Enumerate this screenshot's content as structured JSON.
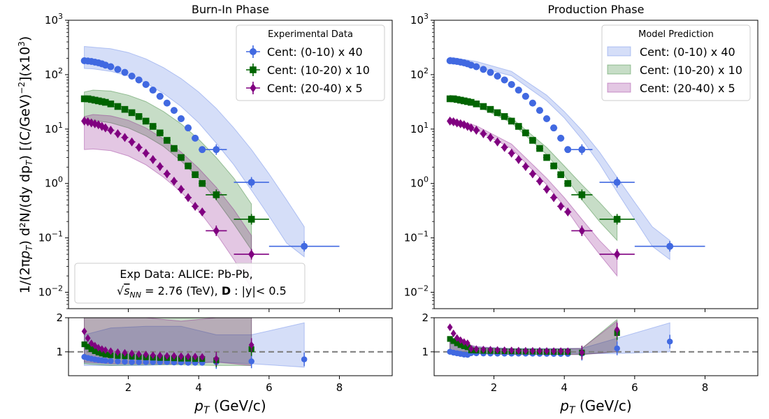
{
  "chart_data": {
    "type": "scatter",
    "ylabel": "1/(2πp_T) d²N/(dy dp_T) [(C/GeV)^-2](x10^3)",
    "xlabel": "p_T (GeV/c)",
    "yscale": "log",
    "xlim": [
      0.3,
      9.5
    ],
    "ylim": [
      0.005,
      1000
    ],
    "ratio_ylim": [
      0.3,
      2
    ],
    "xticks": [
      2,
      4,
      6,
      8
    ],
    "colors": {
      "c010": "#4169e1",
      "c1020": "#006400",
      "c2040": "#800080",
      "ref_line": "#808080"
    },
    "x": [
      0.75,
      0.85,
      0.95,
      1.05,
      1.15,
      1.25,
      1.35,
      1.5,
      1.7,
      1.9,
      2.1,
      2.3,
      2.5,
      2.7,
      2.9,
      3.1,
      3.3,
      3.5,
      3.7,
      3.9,
      4.1,
      4.5,
      5.5,
      7.0
    ],
    "x_err": [
      0.05,
      0.05,
      0.05,
      0.05,
      0.05,
      0.05,
      0.05,
      0.1,
      0.1,
      0.1,
      0.1,
      0.1,
      0.1,
      0.1,
      0.1,
      0.1,
      0.1,
      0.1,
      0.1,
      0.1,
      0.1,
      0.3,
      0.5,
      1.0
    ],
    "series": [
      {
        "name": "Cent: (0-10) x 40",
        "color_key": "c010",
        "marker": "circle",
        "values": [
          180,
          178,
          175,
          170,
          165,
          158,
          150,
          140,
          125,
          110,
          94,
          80,
          66,
          52,
          40,
          30,
          22,
          15.5,
          10.5,
          6.8,
          4.2,
          4.2,
          1.05,
          0.07
        ],
        "ratio": [
          0.85,
          0.82,
          0.8,
          0.78,
          0.76,
          0.75,
          0.74,
          0.73,
          0.72,
          0.71,
          0.7,
          0.7,
          0.7,
          0.7,
          0.7,
          0.7,
          0.69,
          0.69,
          0.68,
          0.68,
          0.68,
          0.7,
          0.72,
          0.78
        ]
      },
      {
        "name": "Cent: (10-20) x 10",
        "color_key": "c1020",
        "marker": "square",
        "values": [
          36,
          36,
          35,
          34,
          33,
          32,
          31,
          29,
          26,
          23,
          20,
          17,
          14,
          11.2,
          8.5,
          6.2,
          4.4,
          3.0,
          2.1,
          1.45,
          1.0,
          0.62,
          0.22
        ],
        "ratio": [
          1.22,
          1.15,
          1.08,
          1.02,
          0.98,
          0.95,
          0.92,
          0.9,
          0.88,
          0.87,
          0.86,
          0.85,
          0.84,
          0.83,
          0.82,
          0.82,
          0.81,
          0.8,
          0.8,
          0.79,
          0.79,
          0.75,
          1.08
        ]
      },
      {
        "name": "Cent: (20-40) x 5",
        "color_key": "c2040",
        "marker": "diamond",
        "values": [
          14,
          13.6,
          13,
          12.5,
          12,
          11.2,
          10.5,
          9.5,
          8.2,
          7.0,
          5.8,
          4.6,
          3.6,
          2.75,
          2.05,
          1.5,
          1.1,
          0.78,
          0.55,
          0.38,
          0.3,
          0.135,
          0.05
        ],
        "ratio": [
          1.6,
          1.4,
          1.25,
          1.18,
          1.12,
          1.08,
          1.05,
          1.02,
          0.99,
          0.97,
          0.95,
          0.93,
          0.92,
          0.9,
          0.89,
          0.88,
          0.88,
          0.87,
          0.86,
          0.86,
          0.85,
          0.8,
          1.2
        ]
      }
    ],
    "panels": [
      {
        "title": "Burn-In Phase",
        "legend_title": "Experimental Data",
        "legend_kind": "markers",
        "legend_position": "top-right",
        "annotation": [
          "Exp Data: ALICE: Pb-Pb,",
          "√s_NN = 2.76 (TeV), D : |y|< 0.5"
        ],
        "ratio_scale": [
          1,
          1,
          1
        ],
        "bands": [
          {
            "name": "Cent: (0-10) x 40",
            "color_key": "c010",
            "x": [
              0.75,
              1.0,
              1.5,
              2.0,
              2.5,
              3.0,
              3.5,
              4.0,
              4.5,
              5.0,
              5.5,
              6.0,
              6.5,
              7.0
            ],
            "lo": [
              130,
              128,
              115,
              95,
              70,
              45,
              26,
              13,
              5.5,
              2.2,
              0.75,
              0.25,
              0.08,
              0.045
            ],
            "hi": [
              330,
              320,
              300,
              255,
              195,
              135,
              85,
              48,
              24,
              10.5,
              4.2,
              1.5,
              0.5,
              0.16
            ]
          },
          {
            "name": "Cent: (10-20) x 10",
            "color_key": "c1020",
            "x": [
              0.75,
              1.0,
              1.5,
              2.0,
              2.5,
              3.0,
              3.5,
              4.0,
              4.5,
              5.0,
              5.5
            ],
            "lo": [
              15,
              14.5,
              13,
              10.5,
              7.5,
              4.8,
              2.6,
              1.25,
              0.5,
              0.18,
              0.06
            ],
            "hi": [
              48,
              52,
              50,
              42,
              32,
              21,
              12.5,
              6.5,
              3.0,
              1.25,
              0.42
            ]
          },
          {
            "name": "Cent: (20-40) x 5",
            "color_key": "c2040",
            "x": [
              0.75,
              1.0,
              1.5,
              2.0,
              2.5,
              3.0,
              3.5,
              4.0,
              4.5,
              5.0,
              5.5
            ],
            "lo": [
              4.2,
              4.3,
              4.0,
              3.2,
              2.2,
              1.3,
              0.7,
              0.32,
              0.12,
              0.04,
              0.012
            ],
            "hi": [
              17,
              18.5,
              17.5,
              14.5,
              10.5,
              6.6,
              3.8,
              1.9,
              0.85,
              0.33,
              0.11
            ]
          }
        ],
        "ratio_bands": [
          {
            "color_key": "c010",
            "x": [
              0.75,
              1.5,
              2.5,
              3.5,
              4.5,
              5.5,
              7.0
            ],
            "lo": [
              0.6,
              0.6,
              0.6,
              0.65,
              0.7,
              0.65,
              0.55
            ],
            "hi": [
              1.5,
              1.7,
              1.75,
              1.75,
              1.5,
              1.5,
              1.85
            ]
          },
          {
            "color_key": "c1020",
            "x": [
              0.75,
              1.5,
              2.5,
              3.5,
              4.5,
              5.5
            ],
            "lo": [
              0.65,
              0.6,
              0.62,
              0.62,
              0.6,
              0.6
            ],
            "hi": [
              2.0,
              2.0,
              2.0,
              2.0,
              2.0,
              2.0
            ]
          },
          {
            "color_key": "c2040",
            "x": [
              0.75,
              1.5,
              2.5,
              3.5,
              4.5,
              5.5
            ],
            "lo": [
              0.7,
              0.65,
              0.65,
              0.65,
              0.7,
              0.6
            ],
            "hi": [
              2.0,
              2.0,
              2.0,
              1.9,
              2.0,
              2.0
            ]
          }
        ]
      },
      {
        "title": "Production Phase",
        "legend_title": "Model Prediction",
        "legend_kind": "bands",
        "legend_position": "top-right",
        "annotation": [],
        "ratio_scale": [
          1.45,
          1.35,
          1.2
        ],
        "bands": [
          {
            "name": "Cent: (0-10) x 40",
            "color_key": "c010",
            "x": [
              0.75,
              1.5,
              2.5,
              3.5,
              4.0,
              4.5,
              5.0,
              5.5,
              6.0,
              6.5,
              7.0
            ],
            "lo": [
              160,
              140,
              95,
              33,
              16,
              6.5,
              2.3,
              0.7,
              0.22,
              0.07,
              0.04
            ],
            "hi": [
              210,
              175,
              115,
              42,
              21,
              9.5,
              3.8,
              1.3,
              0.45,
              0.16,
              0.09
            ]
          },
          {
            "name": "Cent: (10-20) x 10",
            "color_key": "c1020",
            "x": [
              0.75,
              1.5,
              2.5,
              3.5,
              4.0,
              4.5,
              5.0,
              5.5
            ],
            "lo": [
              33,
              27,
              13,
              3.4,
              1.4,
              0.5,
              0.2,
              0.09
            ],
            "hi": [
              42,
              32,
              16,
              4.6,
              2.1,
              0.95,
              0.45,
              0.2
            ]
          },
          {
            "name": "Cent: (20-40) x 5",
            "color_key": "c2040",
            "x": [
              0.75,
              1.5,
              2.5,
              3.5,
              4.0,
              4.5,
              5.0,
              5.5
            ],
            "lo": [
              12.5,
              9.5,
              4.4,
              0.95,
              0.38,
              0.13,
              0.05,
              0.02
            ],
            "hi": [
              16,
              11.5,
              5.3,
              1.25,
              0.55,
              0.22,
              0.09,
              0.042
            ]
          }
        ],
        "ratio_bands": [
          {
            "color_key": "c010",
            "x": [
              0.75,
              1.5,
              2.5,
              3.5,
              4.5,
              5.5,
              7.0
            ],
            "lo": [
              1.05,
              0.95,
              0.95,
              0.95,
              0.95,
              0.95,
              1.0
            ],
            "hi": [
              1.3,
              1.15,
              1.1,
              1.1,
              1.1,
              1.4,
              1.85
            ]
          },
          {
            "color_key": "c1020",
            "x": [
              0.75,
              1.5,
              2.5,
              3.5,
              4.5,
              5.5
            ],
            "lo": [
              1.05,
              0.95,
              0.92,
              0.92,
              0.92,
              1.0
            ],
            "hi": [
              1.35,
              1.12,
              1.08,
              1.08,
              1.1,
              1.95
            ]
          },
          {
            "color_key": "c2040",
            "x": [
              0.75,
              1.5,
              2.5,
              3.5,
              4.5,
              5.5
            ],
            "lo": [
              1.05,
              0.95,
              0.92,
              0.92,
              0.92,
              1.0
            ],
            "hi": [
              1.4,
              1.15,
              1.08,
              1.08,
              1.1,
              1.9
            ]
          }
        ]
      }
    ]
  }
}
